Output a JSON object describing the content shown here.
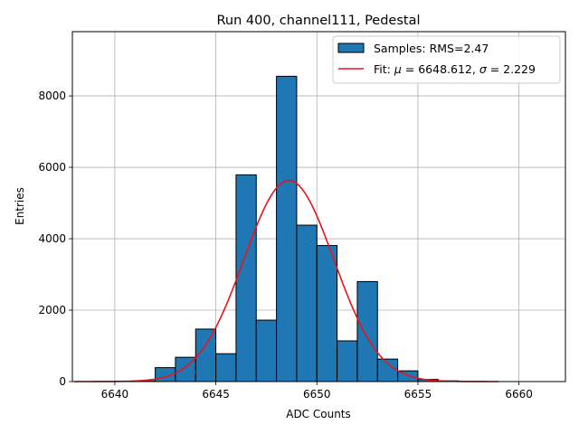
{
  "chart_data": {
    "type": "bar",
    "title": "Run 400, channel111, Pedestal",
    "xlabel": "ADC Counts",
    "ylabel": "Entries",
    "xlim": [
      6637.9,
      6662.3
    ],
    "ylim": [
      0,
      9800
    ],
    "grid": true,
    "legend_position": "top-right",
    "x_ticks": [
      6640,
      6645,
      6650,
      6655,
      6660
    ],
    "y_ticks": [
      0,
      2000,
      4000,
      6000,
      8000
    ],
    "histogram": {
      "name": "Samples: RMS=2.47",
      "bin_width": 1,
      "bin_starts": [
        6638,
        6639,
        6640,
        6641,
        6642,
        6643,
        6644,
        6645,
        6646,
        6647,
        6648,
        6649,
        6650,
        6651,
        6652,
        6653,
        6654,
        6655,
        6656,
        6657,
        6658
      ],
      "values": [
        0,
        0,
        10,
        20,
        390,
        680,
        1470,
        780,
        5790,
        1720,
        8550,
        4380,
        3810,
        1140,
        2800,
        630,
        300,
        60,
        20,
        0,
        0
      ],
      "color": "#1f77b4",
      "edge_color": "#000000"
    },
    "fit": {
      "name_prefix": "Fit: ",
      "mu_symbol": "μ",
      "mu_value": " = 6648.612, ",
      "sigma_symbol": "σ",
      "sigma_value": " = 2.229",
      "mu": 6648.612,
      "sigma": 2.229,
      "peak": 5630,
      "x_range": [
        6638,
        6659
      ],
      "color": "#e8141c"
    }
  }
}
